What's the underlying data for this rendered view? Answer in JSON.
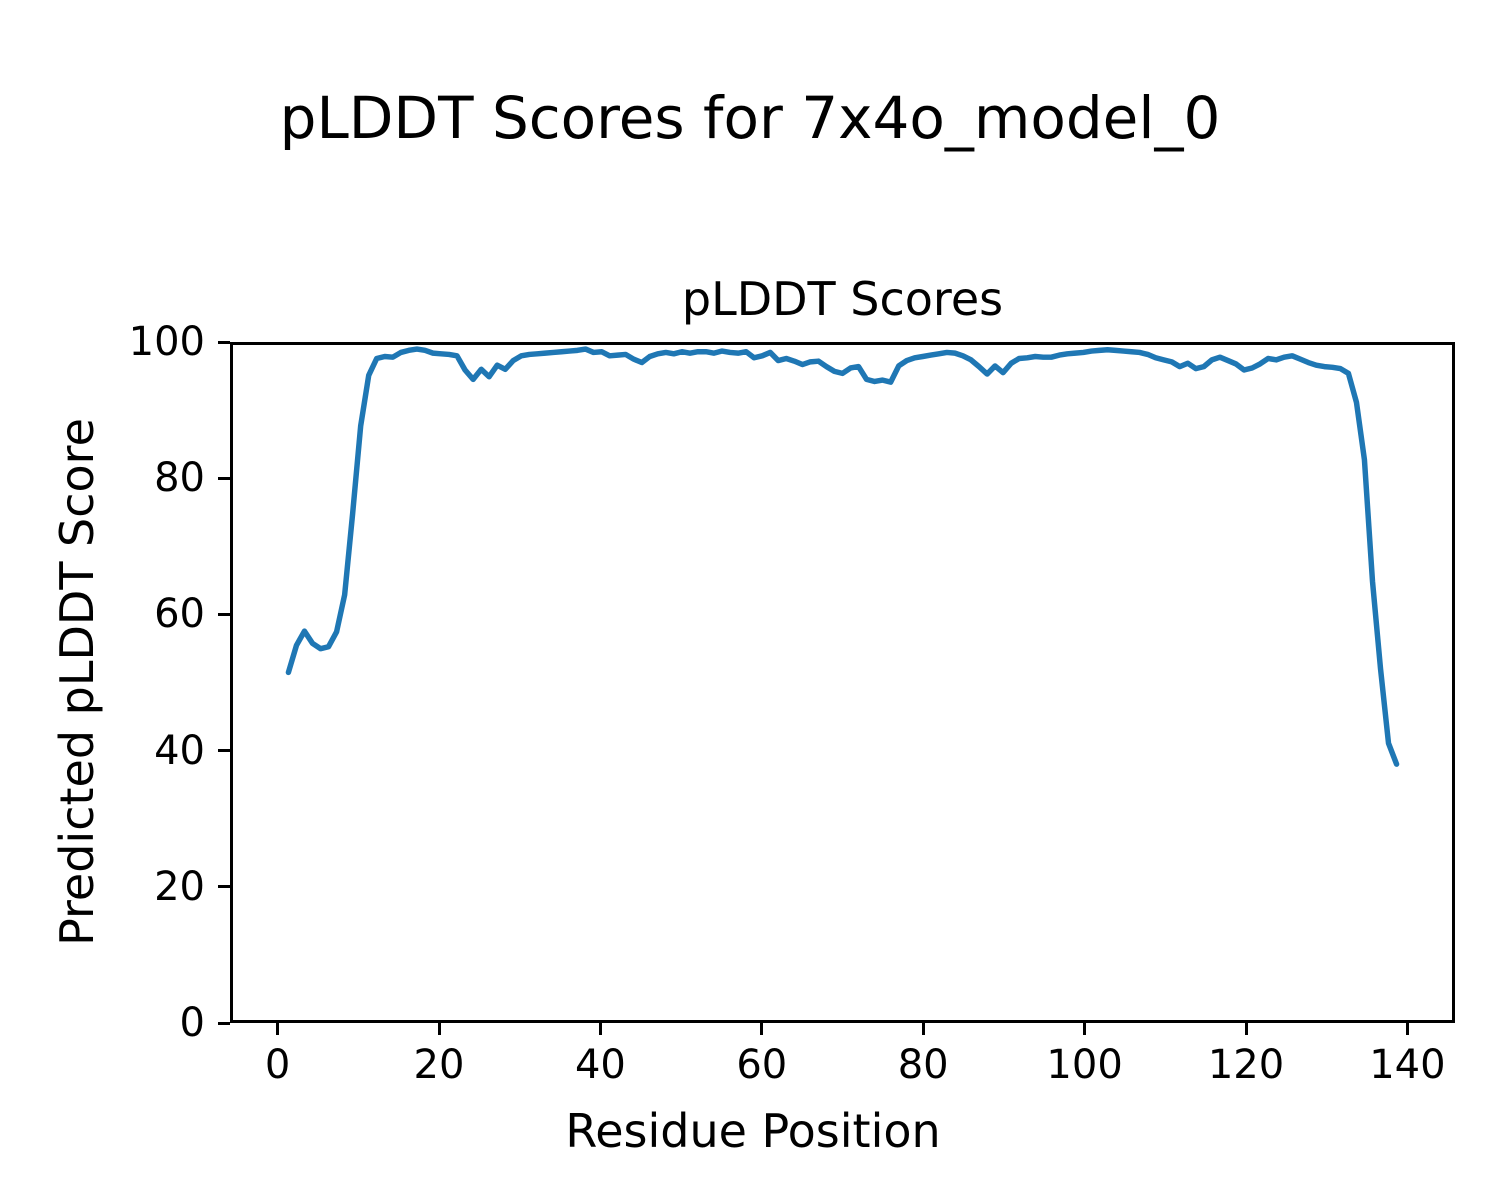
{
  "figure": {
    "suptitle": "pLDDT Scores for 7x4o_model_0"
  },
  "chart_data": {
    "type": "line",
    "title": "pLDDT Scores",
    "xlabel": "Residue Position",
    "ylabel": "Predicted pLDDT Score",
    "xlim": [
      -5.9,
      145.9
    ],
    "ylim": [
      0,
      100
    ],
    "xticks": [
      0,
      20,
      40,
      60,
      80,
      100,
      120,
      140
    ],
    "yticks": [
      0,
      20,
      40,
      60,
      80,
      100
    ],
    "grid": false,
    "legend": "none",
    "background_color": "#ffffff",
    "spine_color": "#000000",
    "series": [
      {
        "name": "pLDDT",
        "color": "#1f77b4",
        "line_width": 5.5,
        "x_label_meaning": "residue position",
        "x_start": 1,
        "x_end": 139,
        "values": [
          51.5,
          55.5,
          57.6,
          55.8,
          55.0,
          55.3,
          57.5,
          63.0,
          75.0,
          88.0,
          95.5,
          98.0,
          98.3,
          98.2,
          98.9,
          99.2,
          99.4,
          99.2,
          98.8,
          98.7,
          98.6,
          98.4,
          96.3,
          94.9,
          96.4,
          95.3,
          97.0,
          96.4,
          97.7,
          98.4,
          98.6,
          98.7,
          98.8,
          98.9,
          99.0,
          99.1,
          99.2,
          99.4,
          98.9,
          99.0,
          98.4,
          98.5,
          98.6,
          97.9,
          97.4,
          98.3,
          98.7,
          98.9,
          98.7,
          99.0,
          98.8,
          99.0,
          99.0,
          98.8,
          99.1,
          98.9,
          98.8,
          99.0,
          98.1,
          98.4,
          98.9,
          97.7,
          98.0,
          97.6,
          97.1,
          97.5,
          97.6,
          96.8,
          96.1,
          95.8,
          96.6,
          96.8,
          94.9,
          94.6,
          94.8,
          94.5,
          96.9,
          97.7,
          98.1,
          98.3,
          98.5,
          98.7,
          98.9,
          98.8,
          98.4,
          97.8,
          96.8,
          95.7,
          96.9,
          95.9,
          97.3,
          98.0,
          98.1,
          98.3,
          98.2,
          98.2,
          98.5,
          98.7,
          98.8,
          98.9,
          99.1,
          99.2,
          99.3,
          99.2,
          99.1,
          99.0,
          98.9,
          98.6,
          98.1,
          97.8,
          97.5,
          96.8,
          97.3,
          96.5,
          96.8,
          97.8,
          98.2,
          97.7,
          97.2,
          96.3,
          96.6,
          97.2,
          98.0,
          97.8,
          98.2,
          98.4,
          97.9,
          97.4,
          97.0,
          96.8,
          96.7,
          96.5,
          95.8,
          91.5,
          83.0,
          65.0,
          52.0,
          41.0,
          37.9
        ]
      }
    ]
  }
}
